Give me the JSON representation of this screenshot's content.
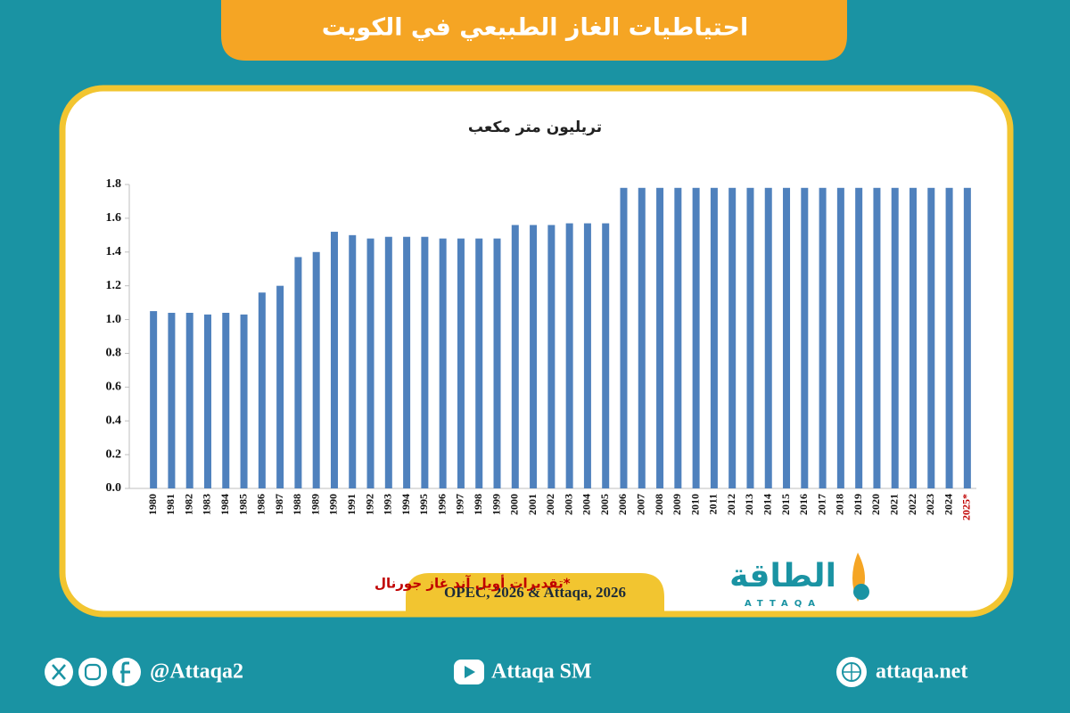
{
  "chart_data": {
    "type": "bar",
    "title": "احتياطيات الغاز الطبيعي في الكويت",
    "unit_label": "تريليون متر مكعب",
    "categories": [
      "1980",
      "1981",
      "1982",
      "1983",
      "1984",
      "1985",
      "1986",
      "1987",
      "1988",
      "1989",
      "1990",
      "1991",
      "1992",
      "1993",
      "1994",
      "1995",
      "1996",
      "1997",
      "1998",
      "1999",
      "2000",
      "2001",
      "2002",
      "2003",
      "2004",
      "2005",
      "2006",
      "2007",
      "2008",
      "2009",
      "2010",
      "2011",
      "2012",
      "2013",
      "2014",
      "2015",
      "2016",
      "2017",
      "2018",
      "2019",
      "2020",
      "2021",
      "2022",
      "2023",
      "2024",
      "2025*"
    ],
    "values": [
      1.05,
      1.04,
      1.04,
      1.03,
      1.04,
      1.03,
      1.16,
      1.2,
      1.37,
      1.4,
      1.52,
      1.5,
      1.48,
      1.49,
      1.49,
      1.49,
      1.48,
      1.48,
      1.48,
      1.48,
      1.56,
      1.56,
      1.56,
      1.57,
      1.57,
      1.57,
      1.78,
      1.78,
      1.78,
      1.78,
      1.78,
      1.78,
      1.78,
      1.78,
      1.78,
      1.78,
      1.78,
      1.78,
      1.78,
      1.78,
      1.78,
      1.78,
      1.78,
      1.78,
      1.78,
      1.78
    ],
    "color": "#4f81bd",
    "ylim": [
      0,
      1.8
    ],
    "yticks": [
      {
        "value": 0,
        "label": "0.0"
      },
      0.2,
      0.4,
      0.6,
      0.8,
      {
        "value": 1,
        "label": "1.0"
      },
      1.2,
      1.4,
      1.6,
      1.8
    ],
    "grid": false,
    "note": "*تقديرات أويل آند غاز جورنال",
    "note_color": "#c00000",
    "source": "OPEC, 2026 & Attaqa, 2026"
  },
  "logo": {
    "name": "الطاقة",
    "latin": "ATTAQA"
  },
  "footer": {
    "handle": "@Attaqa2",
    "youtube": "Attaqa SM",
    "website": "attaqa.net"
  }
}
